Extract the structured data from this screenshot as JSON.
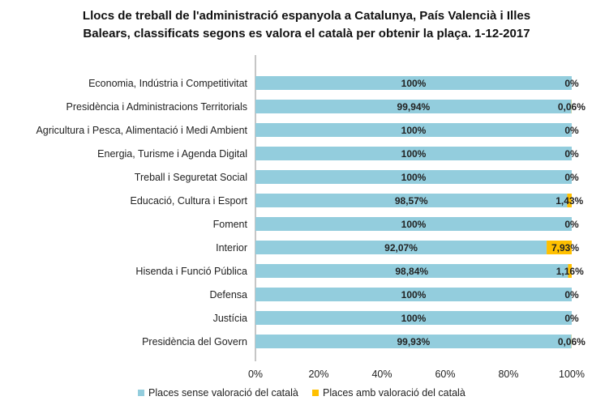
{
  "chart_data": {
    "type": "bar",
    "orientation": "horizontal",
    "stacked": true,
    "percent_stacked": true,
    "title_lines": [
      "Llocs de treball de l'administració  espanyola a Catalunya, País Valencià i Illes",
      "Balears, classificats segons es valora el català per obtenir la plaça. 1-12-2017"
    ],
    "categories": [
      "Economia, Indústria i Competitivitat",
      "Presidència i Administracions Territorials",
      "Agricultura i Pesca, Alimentació i Medi Ambient",
      "Energia, Turisme i Agenda Digital",
      "Treball i Seguretat Social",
      "Educació, Cultura i Esport",
      "Foment",
      "Interior",
      "Hisenda i Funció Pública",
      "Defensa",
      "Justícia",
      "Presidència del Govern"
    ],
    "series": [
      {
        "name": "Places sense valoració del català",
        "color": "#93cddd",
        "values": [
          100,
          99.94,
          100,
          100,
          100,
          98.57,
          100,
          92.07,
          98.84,
          100,
          100,
          99.93
        ],
        "labels": [
          "100%",
          "99,94%",
          "100%",
          "100%",
          "100%",
          "98,57%",
          "100%",
          "92,07%",
          "98,84%",
          "100%",
          "100%",
          "99,93%"
        ]
      },
      {
        "name": "Places amb valoració del català",
        "color": "#ffc000",
        "values": [
          0,
          0.06,
          0,
          0,
          0,
          1.43,
          0,
          7.93,
          1.16,
          0,
          0,
          0.06
        ],
        "labels": [
          "0%",
          "0,06%",
          "0%",
          "0%",
          "0%",
          "1,43%",
          "0%",
          "7,93%",
          "1,16%",
          "0%",
          "0%",
          "0,06%"
        ]
      }
    ],
    "xlim": [
      0,
      100
    ],
    "xticks": [
      0,
      20,
      40,
      60,
      80,
      100
    ],
    "xtick_labels": [
      "0%",
      "20%",
      "40%",
      "60%",
      "80%",
      "100%"
    ],
    "grid": false,
    "legend_position": "bottom"
  }
}
